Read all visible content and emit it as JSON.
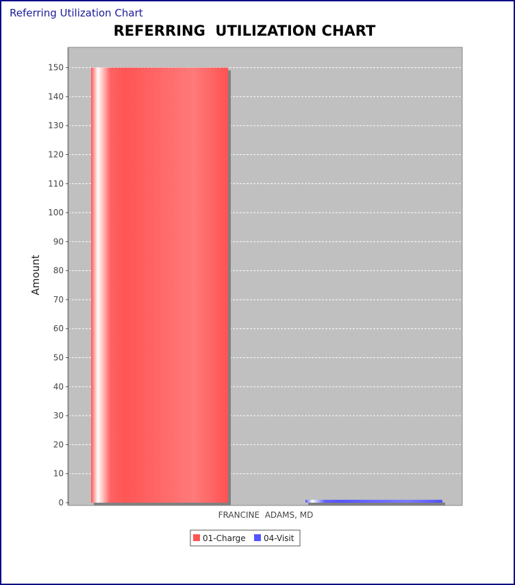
{
  "window": {
    "title": "Referring Utilization Chart"
  },
  "chart_data": {
    "type": "bar",
    "title": "REFERRING  UTILIZATION CHART",
    "xlabel": "",
    "ylabel": "Amount",
    "categories": [
      "FRANCINE  ADAMS, MD"
    ],
    "series": [
      {
        "name": "01-Charge",
        "values": [
          150
        ],
        "color": "#ff5555"
      },
      {
        "name": "04-Visit",
        "values": [
          1
        ],
        "color": "#5555ff"
      }
    ],
    "ylim": [
      0,
      157
    ],
    "yticks": [
      0,
      10,
      20,
      30,
      40,
      50,
      60,
      70,
      80,
      90,
      100,
      110,
      120,
      130,
      140,
      150
    ],
    "grid": true,
    "legend": "bottom-center",
    "plot_background": "#c0c0c0"
  }
}
